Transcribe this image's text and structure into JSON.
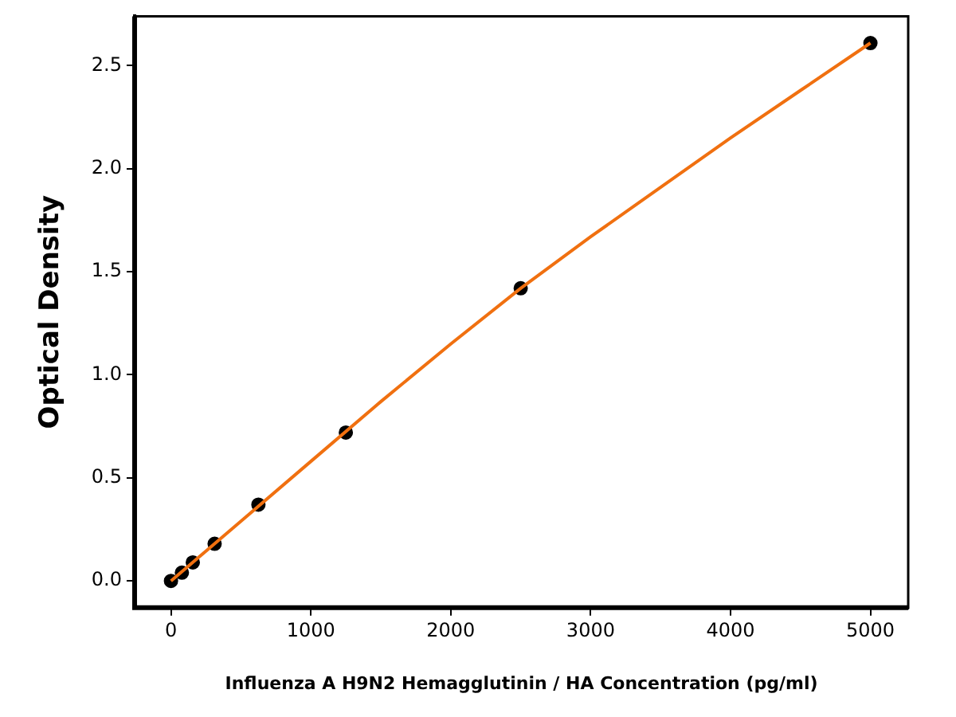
{
  "chart_data": {
    "type": "scatter",
    "xlabel": "Influenza A H9N2 Hemagglutinin / HA Concentration (pg/ml)",
    "ylabel": "Optical Density",
    "xlim": [
      -260,
      5270
    ],
    "xticks": [
      0,
      1000,
      2000,
      3000,
      4000,
      5000
    ],
    "ylim": [
      -0.13,
      2.74
    ],
    "yticks": [
      {
        "value": 0,
        "label": "0.0"
      },
      0.5,
      {
        "value": 1,
        "label": "1.0"
      },
      1.5,
      {
        "value": 2,
        "label": "2.0"
      },
      2.5
    ],
    "grid": false,
    "legend": false,
    "series": [
      {
        "type": "line",
        "color": "#f07010",
        "marker": "none",
        "x": [
          0,
          500,
          1000,
          1500,
          2000,
          2500,
          3000,
          3500,
          4000,
          4500,
          5000
        ],
        "values": [
          0,
          0.29,
          0.58,
          0.87,
          1.15,
          1.42,
          1.67,
          1.91,
          2.15,
          2.38,
          2.61
        ]
      },
      {
        "color": "#000000",
        "marker": "circle",
        "x": [
          0,
          78,
          156,
          312,
          625,
          1250,
          2500,
          5000
        ],
        "values": [
          0,
          0.04,
          0.09,
          0.18,
          0.37,
          0.72,
          1.42,
          2.61
        ]
      }
    ]
  }
}
